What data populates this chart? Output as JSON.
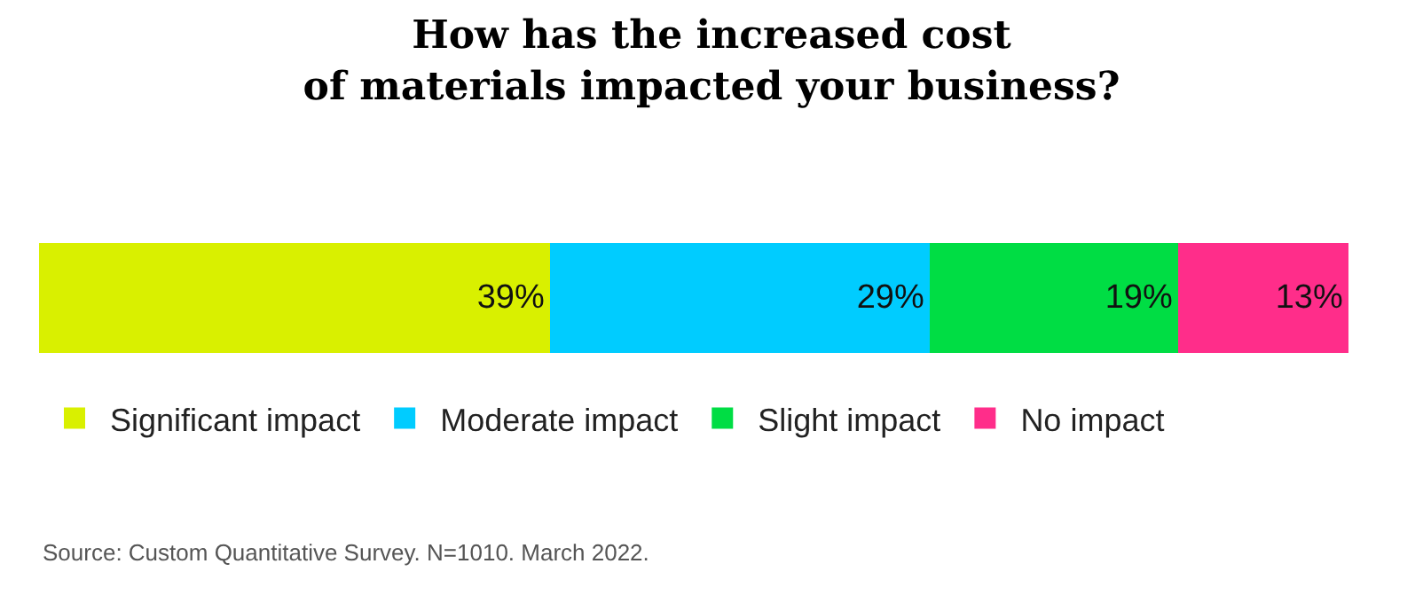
{
  "chart_data": {
    "type": "bar",
    "orientation": "horizontal",
    "stacked": true,
    "title": "How has the increased cost\nof materials impacted your business?",
    "categories": [
      null
    ],
    "series": [
      {
        "name": "Significant impact",
        "color": "#d9f000",
        "values": [
          39
        ],
        "value_labels": [
          "39%"
        ]
      },
      {
        "name": "Moderate impact",
        "color": "#00ccff",
        "values": [
          29
        ],
        "value_labels": [
          "29%"
        ]
      },
      {
        "name": "Slight impact",
        "color": "#00dd44",
        "values": [
          19
        ],
        "value_labels": [
          "19%"
        ]
      },
      {
        "name": "No impact",
        "color": "#ff2d8a",
        "values": [
          13
        ],
        "value_labels": [
          "13%"
        ]
      }
    ],
    "xlim": [
      0,
      100
    ],
    "legend": "bottom",
    "annotations": [
      "Source: Custom Quantitative Survey. N=1010. March 2022."
    ]
  }
}
